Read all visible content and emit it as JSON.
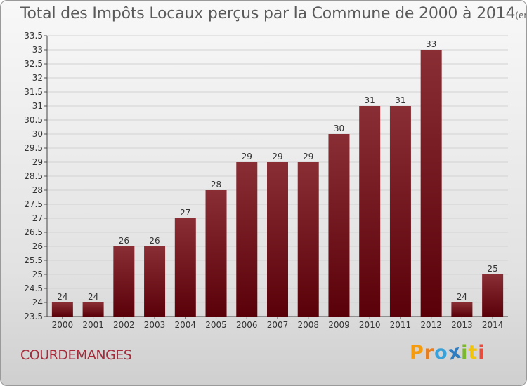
{
  "header": {
    "title": "Total des Impôts Locaux perçus par la Commune de 2000 à 2014",
    "unit": "(en milliers d'€)"
  },
  "footer": {
    "commune": "COURDEMANGES",
    "logo": "Proxiti"
  },
  "colors": {
    "bar_top": "#8a2e35",
    "bar_bottom": "#5a0008",
    "commune_text": "#a52a3a",
    "logo_letters": [
      "#f39c12",
      "#e67e22",
      "#3aa0d8",
      "#2e7dc0",
      "#7cb82f",
      "#f1c40f",
      "#e84c3d"
    ]
  },
  "chart_data": {
    "type": "bar",
    "title": "Total des Impôts Locaux perçus par la Commune de 2000 à 2014",
    "xlabel": "",
    "ylabel": "",
    "categories": [
      "2000",
      "2001",
      "2002",
      "2003",
      "2004",
      "2005",
      "2006",
      "2007",
      "2008",
      "2009",
      "2010",
      "2011",
      "2012",
      "2013",
      "2014"
    ],
    "values": [
      24,
      24,
      26,
      26,
      27,
      28,
      29,
      29,
      29,
      30,
      31,
      31,
      33,
      24,
      25
    ],
    "ylim": [
      23.5,
      33.5
    ],
    "yticks": [
      "23.5",
      "24",
      "24.5",
      "25",
      "25.5",
      "26",
      "26.5",
      "27",
      "27.5",
      "28",
      "28.5",
      "29",
      "29.5",
      "30",
      "30.5",
      "31",
      "31.5",
      "32",
      "32.5",
      "33",
      "33.5"
    ],
    "grid": true
  }
}
